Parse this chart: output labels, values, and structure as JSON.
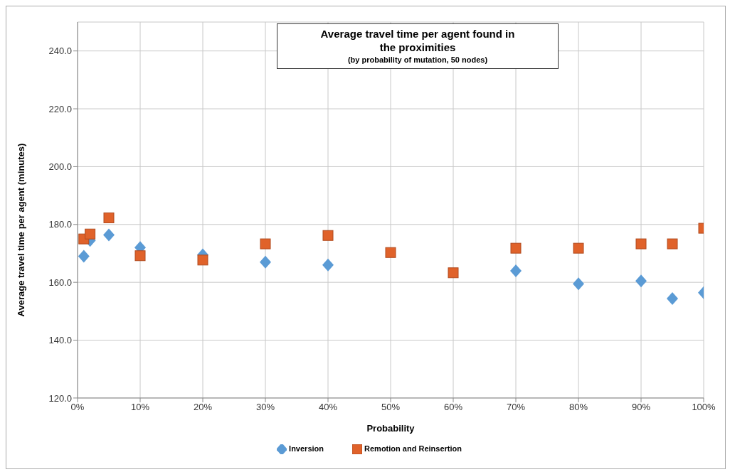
{
  "chart_data": {
    "type": "scatter",
    "title": "Average travel time per agent found in the proximities",
    "subtitle": "(by probability of mutation, 50 nodes)",
    "xlabel": "Probability",
    "ylabel": "Average travel time per agent (minutes)",
    "x": [
      1,
      2,
      5,
      10,
      20,
      30,
      40,
      50,
      60,
      70,
      80,
      90,
      95,
      100
    ],
    "series": [
      {
        "name": "Inversion",
        "color": "#5b9bd5",
        "marker": "diamond",
        "values": [
          169,
          174.5,
          176.4,
          172,
          169.5,
          167,
          166,
          null,
          null,
          164,
          159.5,
          160.5,
          154.4,
          156.4
        ]
      },
      {
        "name": "Remotion and Reinsertion",
        "color": "#e0622a",
        "marker": "square",
        "values": [
          175,
          176.7,
          182.3,
          169.2,
          167.7,
          173.3,
          176.2,
          170.3,
          163.3,
          171.8,
          171.8,
          173.3,
          173.3,
          178.7
        ]
      }
    ],
    "xlim": [
      0,
      100
    ],
    "xticks": [
      {
        "value": 0,
        "label": "0%"
      },
      {
        "value": 10,
        "label": "10%"
      },
      {
        "value": 20,
        "label": "20%"
      },
      {
        "value": 30,
        "label": "30%"
      },
      {
        "value": 40,
        "label": "40%"
      },
      {
        "value": 50,
        "label": "50%"
      },
      {
        "value": 60,
        "label": "60%"
      },
      {
        "value": 70,
        "label": "70%"
      },
      {
        "value": 80,
        "label": "80%"
      },
      {
        "value": 90,
        "label": "90%"
      },
      {
        "value": 100,
        "label": "100%"
      }
    ],
    "ylim": [
      120,
      250
    ],
    "yticks": [
      {
        "value": 120,
        "label": "120.0"
      },
      {
        "value": 140,
        "label": "140.0"
      },
      {
        "value": 160,
        "label": "160.0"
      },
      {
        "value": 180,
        "label": "180.0"
      },
      {
        "value": 200,
        "label": "200.0"
      },
      {
        "value": 220,
        "label": "220.0"
      },
      {
        "value": 240,
        "label": "240.0"
      }
    ],
    "grid": true,
    "legend": "bottom"
  }
}
